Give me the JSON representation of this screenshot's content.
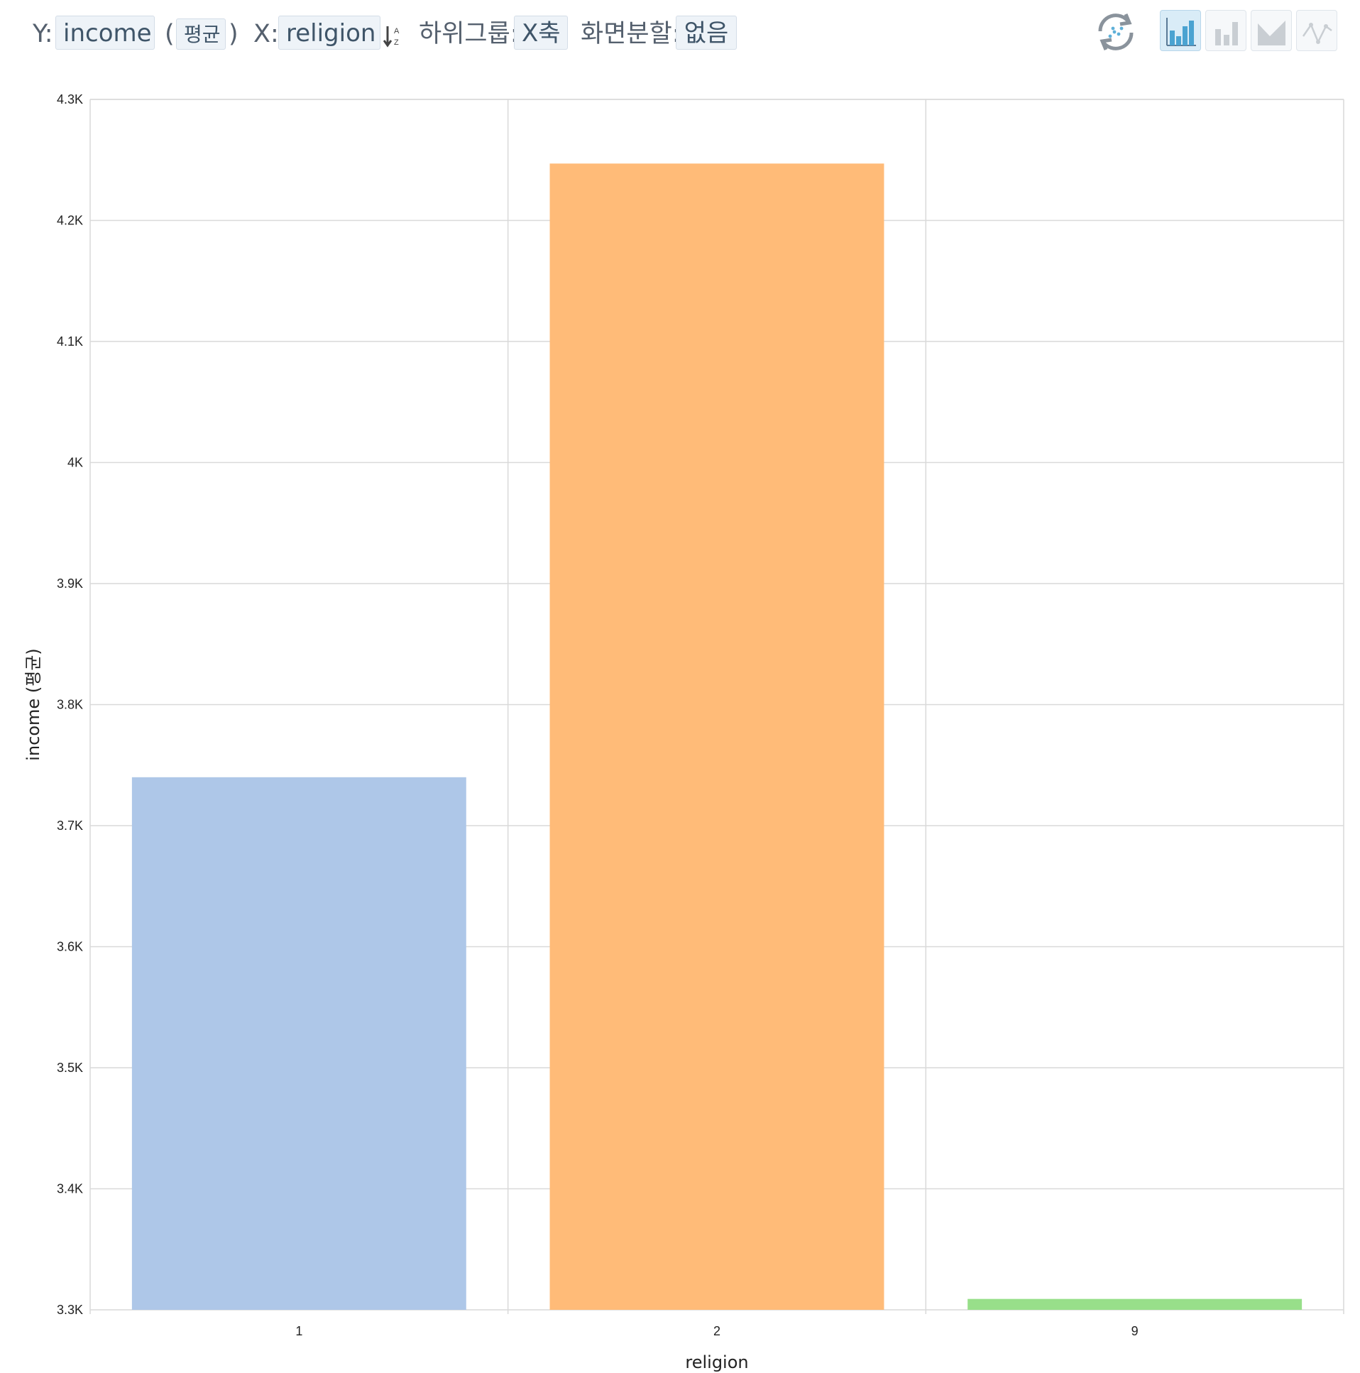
{
  "toolbar": {
    "y_prefix": "Y:",
    "y_field": "income",
    "agg_open": "(",
    "agg_value": "평균",
    "agg_close": ")",
    "x_prefix": "X:",
    "x_field": "religion",
    "subgroup_label": "하위그룹:",
    "subgroup_value": "X축",
    "split_label": "화면분할:",
    "split_value": "없음",
    "icons": [
      "sort-az-icon",
      "refresh-icon",
      "bar-chart-icon",
      "bar-chart-plain-icon",
      "area-chart-icon",
      "line-chart-icon"
    ]
  },
  "chart_data": {
    "type": "bar",
    "categories": [
      "1",
      "2",
      "9"
    ],
    "values": [
      3740,
      4247,
      3309
    ],
    "colors": [
      "#aec7e8",
      "#ffbb78",
      "#98df8a"
    ],
    "xlabel": "religion",
    "ylabel": "income (평균)",
    "ylim": [
      3300,
      4300
    ],
    "yticks": [
      3300,
      3400,
      3500,
      3600,
      3700,
      3800,
      3900,
      4000,
      4100,
      4200,
      4300
    ],
    "ytick_labels": [
      "3.3K",
      "3.4K",
      "3.5K",
      "3.6K",
      "3.7K",
      "3.8K",
      "3.9K",
      "4K",
      "4.1K",
      "4.2K",
      "4.3K"
    ],
    "grid": true
  }
}
